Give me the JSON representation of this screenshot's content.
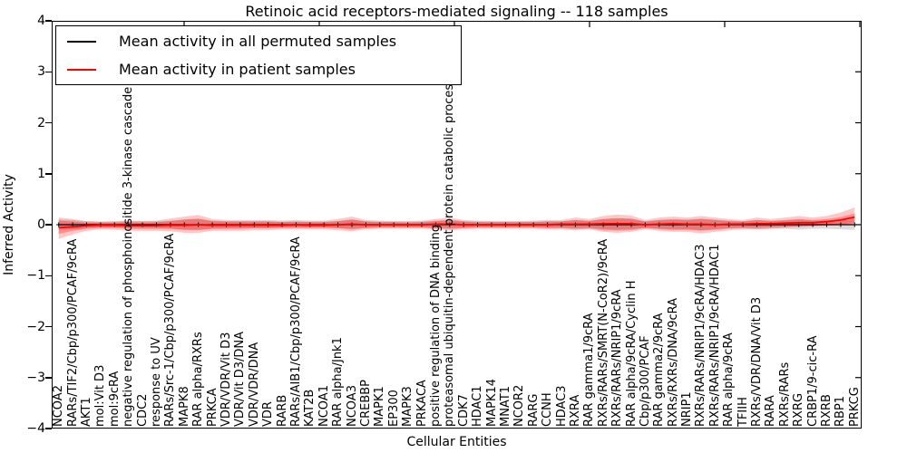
{
  "figure": {
    "title": "Retinoic acid receptors-mediated signaling -- 118 samples",
    "background": "#ffffff"
  },
  "legend": {
    "items": [
      {
        "label": "Mean activity in all permuted samples",
        "color": "#000000"
      },
      {
        "label": "Mean activity in patient samples",
        "color": "#ff0000"
      }
    ]
  },
  "axes": {
    "ylabel": "Inferred Activity",
    "xlabel": "Cellular Entities",
    "yticks": [
      "4",
      "3",
      "2",
      "1",
      "0",
      "−1",
      "−2",
      "−3",
      "−4"
    ],
    "ylim": [
      -4,
      4
    ]
  },
  "chart_data": {
    "type": "line",
    "title": "Retinoic acid receptors-mediated signaling -- 118 samples",
    "xlabel": "Cellular Entities",
    "ylabel": "Inferred Activity",
    "ylim": [
      -4,
      4
    ],
    "grid": false,
    "legend_position": "upper left",
    "categories": [
      "NCOA2",
      "RARs/TIF2/Cbp/p300/PCAF/9cRA",
      "AKT1",
      "mol:Vit D3",
      "mol:9cRA",
      "negative regulation of phosphoinositide 3-kinase cascade",
      "CDC2",
      "response to UV",
      "RARs/Src-1/Cbp/p300/PCAF/9cRA",
      "MAPK8",
      "RAR alpha/RXRs",
      "PRKCA",
      "VDR/VDR/Vit D3",
      "VDR/Vit D3/DNA",
      "VDR/VDR/DNA",
      "VDR",
      "RARB",
      "RARs/AIB1/Cbp/p300/PCAF/9cRA",
      "KAT2B",
      "NCOA1",
      "RAR alpha/Jnk1",
      "NCOA3",
      "CREBBP",
      "MAPK1",
      "EP300",
      "MAPK3",
      "PRKACA",
      "positive regulation of DNA binding",
      "proteasomal ubiquitin-dependent protein catabolic process",
      "CDK7",
      "HDAC1",
      "MAPK14",
      "MNAT1",
      "NCOR2",
      "RARG",
      "CCNH",
      "HDAC3",
      "RXRA",
      "RAR gamma1/9cRA",
      "RXRs/RARs/SMRT(N-CoR2)/9cRA",
      "RXRs/RARs/NRIP1/9cRA",
      "RAR alpha/9cRA/Cyclin H",
      "Cbp/p300/PCAF",
      "RAR gamma2/9cRA",
      "RXRs/RXRs/DNA/9cRA",
      "NRIP1",
      "RXRs/RARs/NRIP1/9cRA/HDAC3",
      "RXRs/RARs/NRIP1/9cRA/HDAC1",
      "RAR alpha/9cRA",
      "TFIIH",
      "RXRs/VDR/DNA/Vit D3",
      "RARA",
      "RXRs/RARs",
      "RXRG",
      "CRBP1/9-cic-RA",
      "RXRB",
      "RBP1",
      "PRKCG"
    ],
    "series": [
      {
        "name": "Mean activity in all permuted samples",
        "color": "#000000",
        "marker": "+",
        "values": [
          0,
          0,
          0,
          0,
          0,
          0,
          0,
          0,
          0,
          0,
          0,
          0,
          0,
          0,
          0,
          0,
          0,
          0,
          0,
          0,
          0,
          0,
          0,
          0,
          0,
          0,
          0,
          0,
          0,
          0,
          0,
          0,
          0,
          0,
          0,
          0,
          0,
          0,
          0,
          0,
          0,
          0,
          0,
          0,
          0,
          0,
          0,
          0,
          0,
          0,
          0,
          0,
          0,
          0,
          0,
          0,
          0,
          0
        ]
      },
      {
        "name": "Mean activity in patient samples",
        "color": "#ff0000",
        "values": [
          -0.06,
          -0.04,
          -0.02,
          -0.01,
          -0.01,
          -0.02,
          -0.02,
          -0.02,
          -0.01,
          -0.01,
          0,
          -0.01,
          -0.01,
          -0.01,
          -0.01,
          -0.01,
          -0.01,
          0,
          -0.01,
          -0.01,
          0,
          0.01,
          0,
          0,
          0,
          0,
          0,
          0.01,
          0.01,
          0,
          0,
          0,
          0,
          0,
          0,
          0,
          0.01,
          0.01,
          0.01,
          0.02,
          0.02,
          0.02,
          0,
          0.01,
          0.02,
          0.01,
          0.01,
          0,
          0.01,
          0.01,
          0.02,
          0.02,
          0.03,
          0.04,
          0.04,
          0.06,
          0.09,
          0.15
        ]
      }
    ],
    "bands": [
      {
        "name": "permuted samples range",
        "color": "#bfbfbf",
        "opacity": 0.55,
        "upper": [
          0.1,
          0.09,
          0.07,
          0.06,
          0.06,
          0.07,
          0.07,
          0.07,
          0.08,
          0.1,
          0.11,
          0.08,
          0.07,
          0.07,
          0.07,
          0.07,
          0.06,
          0.06,
          0.06,
          0.06,
          0.07,
          0.1,
          0.07,
          0.06,
          0.06,
          0.06,
          0.06,
          0.08,
          0.09,
          0.07,
          0.06,
          0.06,
          0.06,
          0.06,
          0.06,
          0.07,
          0.07,
          0.09,
          0.08,
          0.11,
          0.12,
          0.11,
          0.07,
          0.09,
          0.11,
          0.1,
          0.12,
          0.1,
          0.08,
          0.07,
          0.09,
          0.08,
          0.08,
          0.1,
          0.08,
          0.08,
          0.09,
          0.1
        ],
        "lower": [
          -0.1,
          -0.09,
          -0.07,
          -0.06,
          -0.06,
          -0.07,
          -0.07,
          -0.07,
          -0.08,
          -0.1,
          -0.11,
          -0.08,
          -0.07,
          -0.07,
          -0.07,
          -0.07,
          -0.06,
          -0.06,
          -0.06,
          -0.06,
          -0.07,
          -0.1,
          -0.07,
          -0.06,
          -0.06,
          -0.06,
          -0.06,
          -0.08,
          -0.09,
          -0.07,
          -0.06,
          -0.06,
          -0.06,
          -0.06,
          -0.06,
          -0.07,
          -0.07,
          -0.09,
          -0.08,
          -0.11,
          -0.12,
          -0.11,
          -0.07,
          -0.09,
          -0.11,
          -0.1,
          -0.12,
          -0.1,
          -0.08,
          -0.07,
          -0.09,
          -0.08,
          -0.08,
          -0.1,
          -0.08,
          -0.08,
          -0.09,
          -0.1
        ]
      },
      {
        "name": "patient samples outer range",
        "color": "#ff0000",
        "opacity": 0.22,
        "upper": [
          0.14,
          0.11,
          0.07,
          0.06,
          0.07,
          0.08,
          0.07,
          0.08,
          0.12,
          0.16,
          0.19,
          0.11,
          0.09,
          0.09,
          0.09,
          0.09,
          0.08,
          0.09,
          0.08,
          0.08,
          0.11,
          0.16,
          0.09,
          0.08,
          0.07,
          0.07,
          0.08,
          0.11,
          0.14,
          0.09,
          0.08,
          0.07,
          0.07,
          0.07,
          0.08,
          0.09,
          0.09,
          0.14,
          0.11,
          0.17,
          0.2,
          0.18,
          0.09,
          0.14,
          0.16,
          0.14,
          0.17,
          0.14,
          0.11,
          0.09,
          0.14,
          0.11,
          0.14,
          0.17,
          0.14,
          0.17,
          0.24,
          0.34
        ],
        "lower": [
          -0.28,
          -0.19,
          -0.12,
          -0.09,
          -0.1,
          -0.12,
          -0.12,
          -0.12,
          -0.13,
          -0.16,
          -0.16,
          -0.12,
          -0.12,
          -0.12,
          -0.11,
          -0.11,
          -0.09,
          -0.09,
          -0.09,
          -0.09,
          -0.11,
          -0.13,
          -0.09,
          -0.08,
          -0.08,
          -0.08,
          -0.08,
          -0.09,
          -0.11,
          -0.09,
          -0.08,
          -0.08,
          -0.08,
          -0.08,
          -0.08,
          -0.09,
          -0.09,
          -0.11,
          -0.09,
          -0.14,
          -0.16,
          -0.14,
          -0.09,
          -0.12,
          -0.14,
          -0.14,
          -0.17,
          -0.14,
          -0.11,
          -0.09,
          -0.09,
          -0.08,
          -0.06,
          -0.05,
          -0.03,
          -0.02,
          0.0,
          0.02
        ]
      },
      {
        "name": "patient samples inner range",
        "color": "#ff0000",
        "opacity": 0.3,
        "upper": [
          0.08,
          0.06,
          0.04,
          0.04,
          0.04,
          0.05,
          0.04,
          0.05,
          0.07,
          0.1,
          0.12,
          0.07,
          0.06,
          0.06,
          0.06,
          0.06,
          0.05,
          0.06,
          0.05,
          0.05,
          0.07,
          0.1,
          0.06,
          0.05,
          0.05,
          0.04,
          0.05,
          0.07,
          0.09,
          0.06,
          0.05,
          0.05,
          0.05,
          0.05,
          0.05,
          0.06,
          0.06,
          0.09,
          0.07,
          0.11,
          0.13,
          0.12,
          0.06,
          0.09,
          0.1,
          0.09,
          0.11,
          0.09,
          0.07,
          0.06,
          0.09,
          0.07,
          0.09,
          0.11,
          0.09,
          0.11,
          0.15,
          0.22
        ],
        "lower": [
          -0.18,
          -0.12,
          -0.08,
          -0.06,
          -0.06,
          -0.08,
          -0.08,
          -0.08,
          -0.08,
          -0.1,
          -0.1,
          -0.08,
          -0.08,
          -0.08,
          -0.07,
          -0.07,
          -0.06,
          -0.06,
          -0.06,
          -0.06,
          -0.07,
          -0.08,
          -0.06,
          -0.05,
          -0.05,
          -0.05,
          -0.05,
          -0.06,
          -0.07,
          -0.06,
          -0.05,
          -0.05,
          -0.05,
          -0.05,
          -0.05,
          -0.06,
          -0.06,
          -0.07,
          -0.06,
          -0.09,
          -0.1,
          -0.09,
          -0.06,
          -0.08,
          -0.09,
          -0.09,
          -0.11,
          -0.09,
          -0.07,
          -0.06,
          -0.06,
          -0.05,
          -0.04,
          -0.03,
          -0.02,
          -0.01,
          0.0,
          0.04
        ]
      }
    ]
  }
}
